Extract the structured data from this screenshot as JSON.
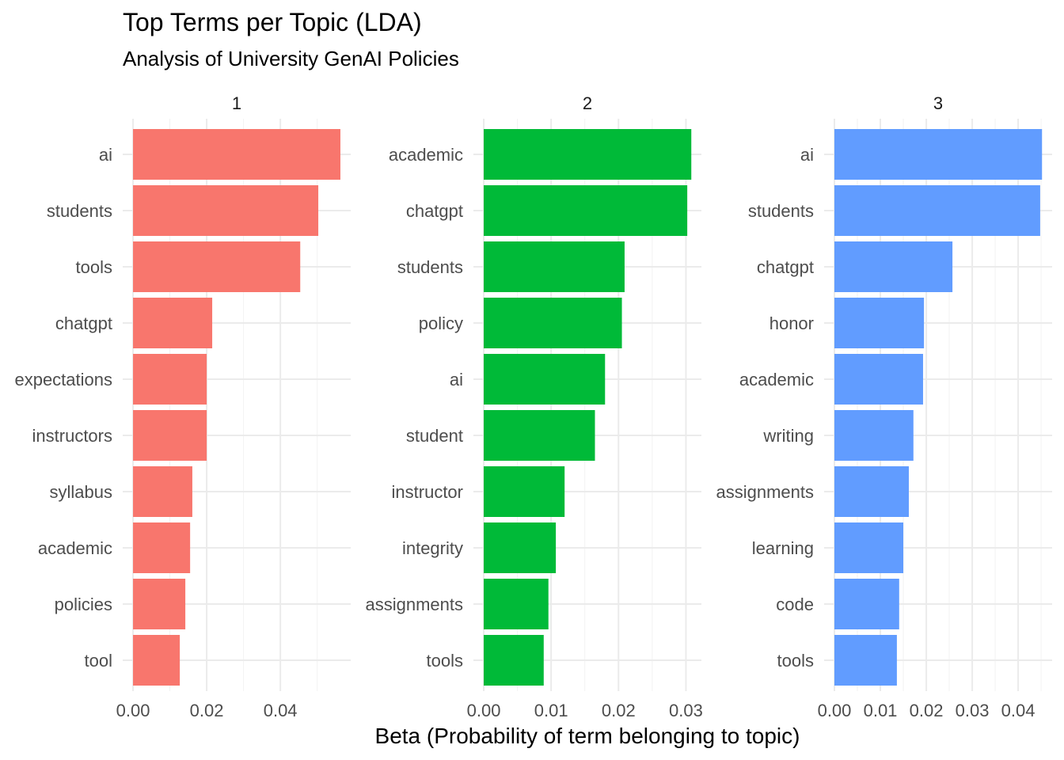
{
  "chart_data": {
    "type": "bar",
    "orientation": "horizontal",
    "title": "Top Terms per Topic (LDA)",
    "subtitle": "Analysis of University GenAI Policies",
    "xlabel": "Beta (Probability of term belonging to topic)",
    "ylabel": "",
    "grid": true,
    "legend": "none",
    "panels": [
      {
        "label": "1",
        "color": "#F8766D",
        "xlim": [
          -0.0028,
          0.0591
        ],
        "ticks": [
          0,
          0.02,
          0.04
        ],
        "tick_labels": [
          "0.00",
          "0.02",
          "0.04"
        ],
        "terms": [
          "ai",
          "students",
          "tools",
          "chatgpt",
          "expectations",
          "instructors",
          "syllabus",
          "academic",
          "policies",
          "tool"
        ],
        "values": [
          0.0563,
          0.0503,
          0.0454,
          0.0215,
          0.02,
          0.02,
          0.0161,
          0.0155,
          0.0142,
          0.0127
        ]
      },
      {
        "label": "2",
        "color": "#00BA38",
        "xlim": [
          -0.00153,
          0.0323
        ],
        "ticks": [
          0,
          0.01,
          0.02,
          0.03
        ],
        "tick_labels": [
          "0.00",
          "0.01",
          "0.02",
          "0.03"
        ],
        "terms": [
          "academic",
          "chatgpt",
          "students",
          "policy",
          "ai",
          "student",
          "instructor",
          "integrity",
          "assignments",
          "tools"
        ],
        "values": [
          0.0308,
          0.0302,
          0.0209,
          0.0205,
          0.018,
          0.0165,
          0.012,
          0.0107,
          0.0096,
          0.0089
        ]
      },
      {
        "label": "3",
        "color": "#619CFF",
        "xlim": [
          -0.00224,
          0.0474
        ],
        "ticks": [
          0,
          0.01,
          0.02,
          0.03,
          0.04
        ],
        "tick_labels": [
          "0.00",
          "0.01",
          "0.02",
          "0.03",
          "0.04"
        ],
        "terms": [
          "ai",
          "students",
          "chatgpt",
          "honor",
          "academic",
          "writing",
          "assignments",
          "learning",
          "code",
          "tools"
        ],
        "values": [
          0.0452,
          0.0448,
          0.0257,
          0.0195,
          0.0193,
          0.0172,
          0.0162,
          0.015,
          0.0141,
          0.0136
        ]
      }
    ]
  }
}
